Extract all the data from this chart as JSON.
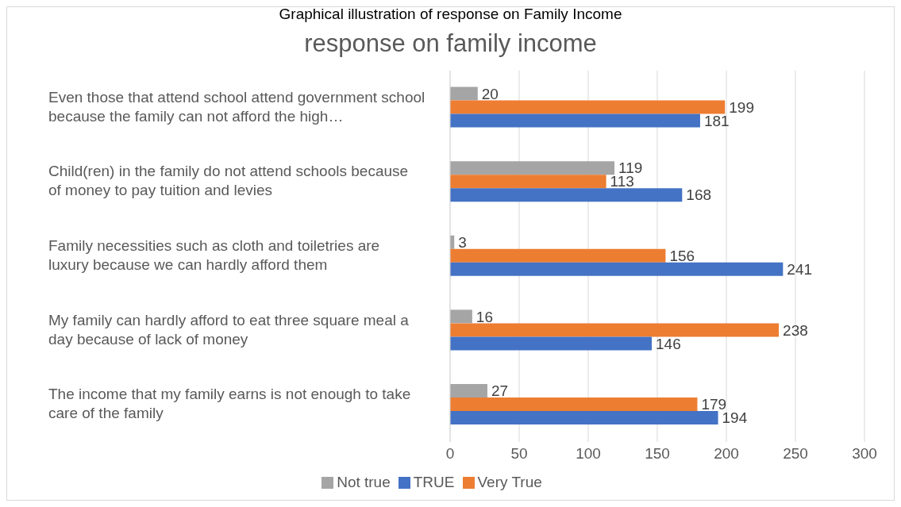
{
  "chart_data": {
    "type": "bar",
    "orientation": "horizontal",
    "title": "response on family income",
    "annotations": [
      "Graphical illustration of response on Family Income"
    ],
    "categories": [
      "Even those that attend school attend government school because the family can not afford the high…",
      "Child(ren) in the family do not attend schools because of money to pay tuition and levies",
      "Family necessities such as cloth and toiletries are luxury because we can hardly afford them",
      "My family can hardly afford to eat three square meal a day because of lack of money",
      "The income that my family earns is not enough to take care of the family"
    ],
    "series": [
      {
        "name": "Not true",
        "color": "#a5a5a5",
        "values": [
          20,
          119,
          3,
          16,
          27
        ]
      },
      {
        "name": "Very True",
        "color": "#ed7d31",
        "values": [
          199,
          113,
          156,
          238,
          179
        ]
      },
      {
        "name": "TRUE",
        "color": "#4472c4",
        "values": [
          181,
          168,
          241,
          146,
          194
        ]
      }
    ],
    "xlim": [
      0,
      300
    ],
    "xticks": [
      0,
      50,
      100,
      150,
      200,
      250,
      300
    ],
    "grid": "x",
    "legend": "bottom",
    "data_labels": true
  }
}
